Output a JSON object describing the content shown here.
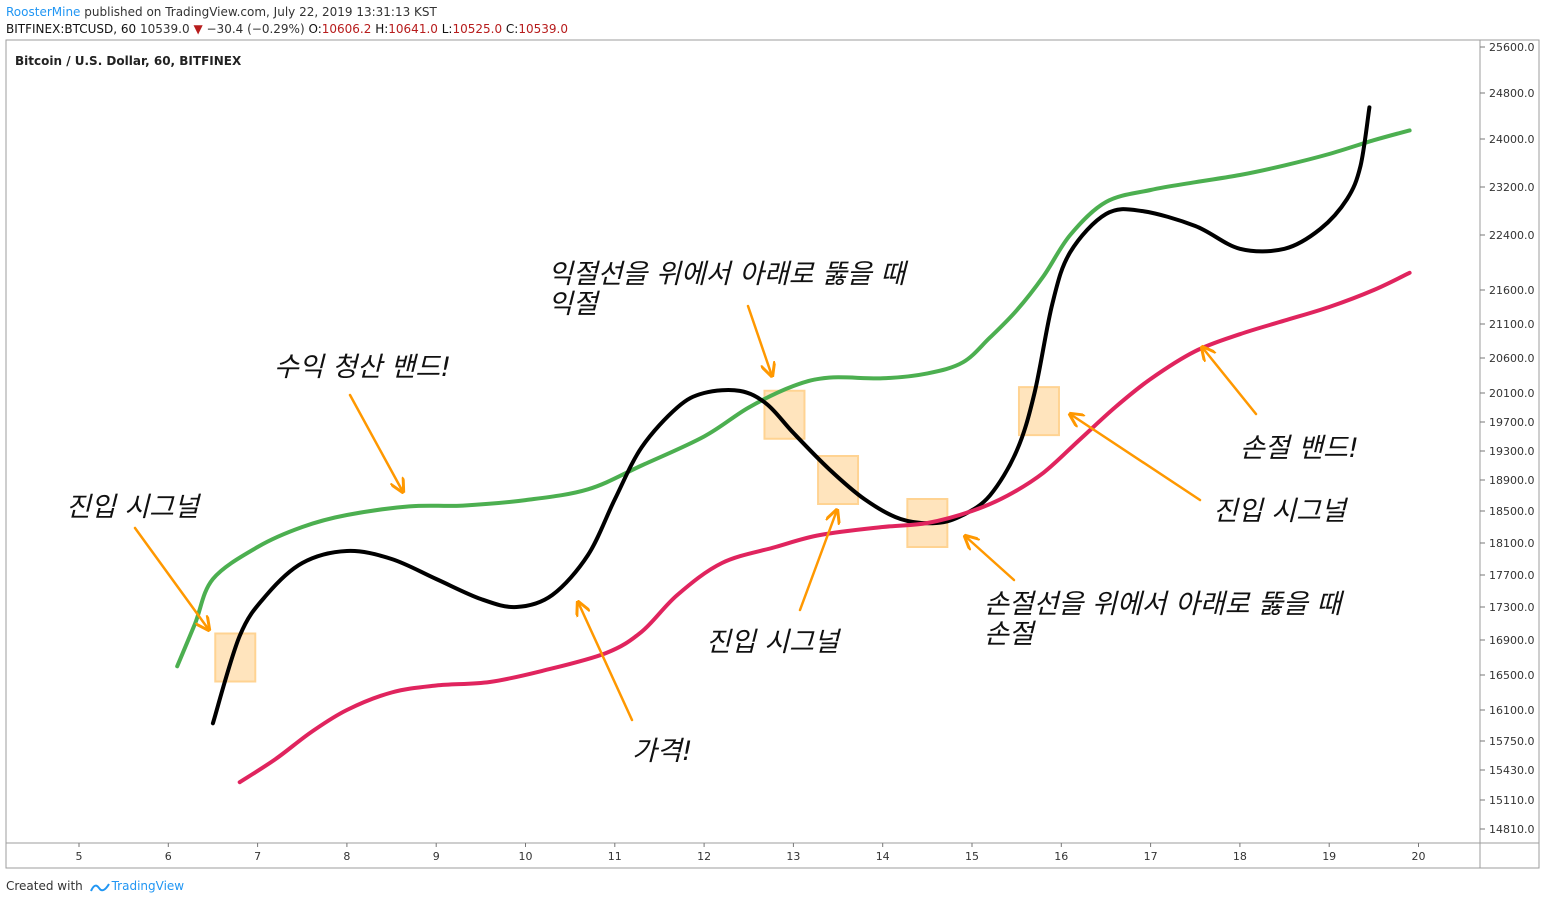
{
  "header": {
    "publisher": "RoosterMine",
    "published_text": "published on TradingView.com, July 22, 2019 13:31:13 KST",
    "symbol": "BITFINEX:BTCUSD, 60",
    "last": "10539.0",
    "change": "−30.4 (−0.29%)",
    "open_label": "O:",
    "open": "10606.2",
    "high_label": "H:",
    "high": "10641.0",
    "low_label": "L:",
    "low": "10525.0",
    "close_label": "C:",
    "close": "10539.0"
  },
  "footer": {
    "created_with": "Created with",
    "brand": "TradingView",
    "logo_icon": "tradingview-wave-icon"
  },
  "colors": {
    "price": "#000000",
    "profit_band": "#4caf50",
    "stop_band": "#e0245e",
    "annotation": "#ff9800",
    "signal_box_fill": "#ffe0b2",
    "signal_box_stroke": "#ffcc80"
  },
  "chart_data": {
    "type": "line",
    "title": "Bitcoin / U.S. Dollar, 60, BITFINEX",
    "xlabel": "",
    "ylabel": "",
    "x_ticks": [
      5,
      6,
      7,
      8,
      9,
      10,
      11,
      12,
      13,
      14,
      15,
      16,
      17,
      18,
      19,
      20
    ],
    "y_ticks": [
      "25600.0",
      "24800.0",
      "24000.0",
      "23200.0",
      "22400.0",
      "21600.0",
      "21100.0",
      "20600.0",
      "20100.0",
      "19700.0",
      "19300.0",
      "18900.0",
      "18500.0",
      "18100.0",
      "17700.0",
      "17300.0",
      "16900.0",
      "16500.0",
      "16100.0",
      "15750.0",
      "15430.0",
      "15110.0",
      "14810.0"
    ],
    "grid": false,
    "legend": "none",
    "series": [
      {
        "key": "profit_band",
        "x": [
          6.1,
          6.3,
          6.5,
          7.0,
          7.5,
          8.0,
          8.7,
          9.3,
          10.0,
          10.7,
          11.3,
          12.0,
          12.5,
          13.0,
          13.4,
          14.0,
          14.5,
          14.9,
          15.2,
          15.5,
          15.8,
          16.1,
          16.5,
          17.0,
          17.5,
          18.0,
          18.5,
          19.0,
          19.5,
          19.9
        ],
        "y": [
          16600,
          17100,
          17650,
          18050,
          18300,
          18450,
          18560,
          18570,
          18640,
          18780,
          19100,
          19500,
          19900,
          20200,
          20320,
          20310,
          20380,
          20540,
          20900,
          21300,
          21800,
          22400,
          22950,
          23150,
          23280,
          23400,
          23560,
          23750,
          23980,
          24150
        ]
      },
      {
        "key": "price",
        "x": [
          6.5,
          6.8,
          7.1,
          7.5,
          8.0,
          8.5,
          9.0,
          9.5,
          9.9,
          10.3,
          10.7,
          11.0,
          11.3,
          11.7,
          12.0,
          12.4,
          12.7,
          13.0,
          13.4,
          13.8,
          14.2,
          14.6,
          14.9,
          15.2,
          15.5,
          15.7,
          15.9,
          16.1,
          16.5,
          16.9,
          17.5,
          18.0,
          18.5,
          18.9,
          19.2,
          19.35,
          19.45
        ],
        "y": [
          15950,
          16950,
          17450,
          17850,
          18000,
          17900,
          17650,
          17400,
          17300,
          17450,
          17950,
          18650,
          19350,
          19900,
          20100,
          20130,
          19950,
          19550,
          19050,
          18650,
          18400,
          18350,
          18450,
          18700,
          19300,
          20100,
          21400,
          22150,
          22750,
          22800,
          22550,
          22200,
          22200,
          22500,
          23000,
          23550,
          24550
        ]
      },
      {
        "key": "stop_band",
        "x": [
          6.8,
          7.2,
          7.6,
          8.0,
          8.5,
          9.0,
          9.6,
          10.2,
          10.9,
          11.3,
          11.7,
          12.2,
          12.8,
          13.3,
          14.0,
          14.5,
          15.0,
          15.4,
          15.8,
          16.2,
          16.6,
          17.0,
          17.5,
          18.0,
          18.5,
          19.0,
          19.5,
          19.9
        ],
        "y": [
          15300,
          15550,
          15850,
          16100,
          16300,
          16380,
          16420,
          16550,
          16750,
          17000,
          17450,
          17850,
          18050,
          18200,
          18300,
          18350,
          18500,
          18700,
          19000,
          19450,
          19900,
          20300,
          20700,
          20950,
          21150,
          21350,
          21600,
          21850
        ]
      }
    ],
    "annotations": [
      "수익 청산 밴드!",
      "익절선을 위에서 아래로 뚫을 때",
      "익절",
      "진입 시그널",
      "진입 시그널",
      "진입 시그널",
      "가격!",
      "손절선을 위에서 아래로 뚫을 때",
      "손절",
      "손절 밴드!"
    ],
    "signal_points": [
      {
        "x": 6.75,
        "y": 16700
      },
      {
        "x": 12.9,
        "y": 19800
      },
      {
        "x": 13.5,
        "y": 18900
      },
      {
        "x": 14.5,
        "y": 18350
      },
      {
        "x": 15.75,
        "y": 19850
      }
    ]
  }
}
